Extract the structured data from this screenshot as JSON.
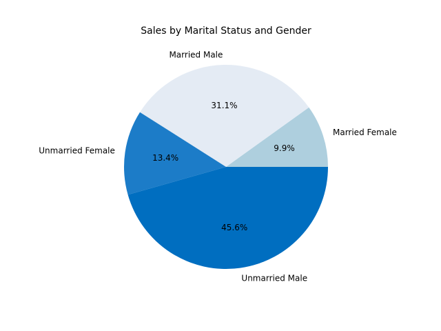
{
  "chart_data": {
    "type": "pie",
    "title": "Sales by Marital Status and Gender",
    "slices": [
      {
        "label": "Married Female",
        "value": 9.9,
        "pct_label": "9.9%",
        "color": "#aecfde"
      },
      {
        "label": "Married Male",
        "value": 31.1,
        "pct_label": "31.1%",
        "color": "#e4ebf4"
      },
      {
        "label": "Unmarried Female",
        "value": 13.4,
        "pct_label": "13.4%",
        "color": "#1c7cc8"
      },
      {
        "label": "Unmarried Male",
        "value": 45.6,
        "pct_label": "45.6%",
        "color": "#006ec0"
      }
    ],
    "start_angle_deg": 0,
    "direction": "counterclockwise",
    "legend": "none"
  }
}
